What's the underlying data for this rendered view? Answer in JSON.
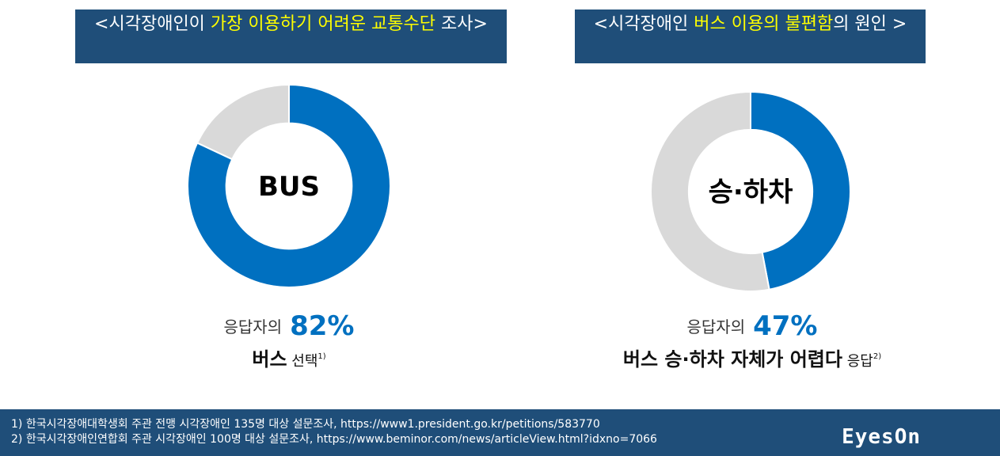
{
  "left_title": {
    "part1": "<시각장애인이 ",
    "highlight": "가장 이용하기 어려운 교통수단",
    "part2": " 조사>"
  },
  "right_title": {
    "part1": "<시각장애인 ",
    "highlight": "버스 이용의 불편함",
    "part2": "의 원인 >"
  },
  "chart_data": [
    {
      "type": "pie",
      "center_label": "BUS",
      "slices": [
        {
          "label": "버스",
          "value": 82,
          "color": "#0070c0"
        },
        {
          "label": "",
          "value": 18,
          "color": "#d9d9d9"
        }
      ]
    },
    {
      "type": "pie",
      "center_label": "승·하차",
      "slices": [
        {
          "label": "버스 승·하차 자체가 어렵다",
          "value": 47,
          "color": "#0070c0"
        },
        {
          "label": "",
          "value": 53,
          "color": "#d9d9d9"
        }
      ]
    }
  ],
  "left_caption": {
    "prefix": "응답자의",
    "percent": "82%",
    "bold": "버스",
    "suffix": " 선택",
    "ref": "1)"
  },
  "right_caption": {
    "prefix": "응답자의",
    "percent": "47%",
    "bold": "버스 승·하차 자체가 어렵다",
    "suffix": " 응답",
    "ref": "2)"
  },
  "footer": {
    "note1": "1) 한국시각장애대학생회 주관 전맹 시각장애인 135명 대상 설문조사, https://www1.president.go.kr/petitions/583770",
    "note2": "2) 한국시각장애인연합회 주관 시각장애인 100명 대상 설문조사, https://www.beminor.com/news/articleView.html?idxno=7066",
    "logo": "EyesOn"
  }
}
